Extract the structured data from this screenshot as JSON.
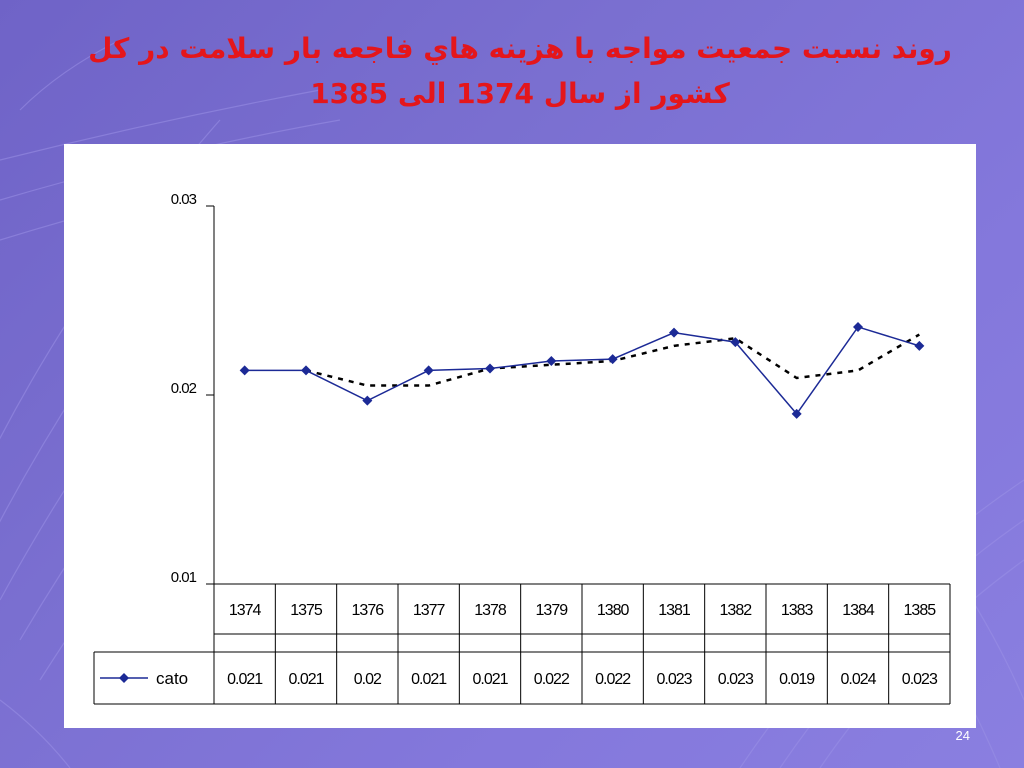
{
  "slide": {
    "title_line1": "روند نسبت جمعيت مواجه با هزينه هاي فاجعه بار سلامت در كل",
    "title_line2": "كشور از سال 1374 الی 1385",
    "page_number": "24"
  },
  "colors": {
    "title": "#e4161b",
    "series_line": "#1c2a96",
    "trend_line": "#000000",
    "background": "#7a6fd0"
  },
  "chart_data": {
    "type": "line",
    "categories": [
      "1374",
      "1375",
      "1376",
      "1377",
      "1378",
      "1379",
      "1380",
      "1381",
      "1382",
      "1383",
      "1384",
      "1385"
    ],
    "series": [
      {
        "name": "cato",
        "marker": "diamond",
        "values": [
          0.0213,
          0.0213,
          0.0197,
          0.0213,
          0.0214,
          0.0218,
          0.0219,
          0.0233,
          0.0228,
          0.019,
          0.0236,
          0.0226
        ],
        "table_labels": [
          "0.021",
          "0.021",
          "0.02",
          "0.021",
          "0.021",
          "0.022",
          "0.022",
          "0.023",
          "0.023",
          "0.019",
          "0.024",
          "0.023"
        ]
      }
    ],
    "trendline": {
      "style": "dashed",
      "values": [
        null,
        0.0213,
        0.0205,
        0.0205,
        0.0214,
        0.0216,
        0.0218,
        0.0226,
        0.023,
        0.0209,
        0.0213,
        0.0232
      ]
    },
    "yticks": [
      "0.01",
      "0.02",
      "0.03"
    ],
    "ylim": [
      0.01,
      0.03
    ],
    "grid": false,
    "data_table": true
  }
}
